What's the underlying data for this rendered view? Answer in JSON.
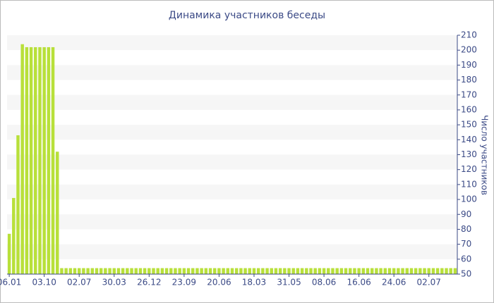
{
  "chart_data": {
    "type": "bar",
    "title": "Динамика участников беседы",
    "y_label": "Число участников",
    "color": "#b8e03a",
    "ylim": [
      50,
      210
    ],
    "yticks": [
      50,
      60,
      70,
      80,
      90,
      100,
      110,
      120,
      130,
      140,
      150,
      160,
      170,
      180,
      190,
      200,
      210
    ],
    "categories": [
      "06.01",
      null,
      null,
      null,
      null,
      null,
      null,
      null,
      "03.10",
      null,
      null,
      null,
      null,
      null,
      null,
      null,
      "02.07",
      null,
      null,
      null,
      null,
      null,
      null,
      null,
      "30.03",
      null,
      null,
      null,
      null,
      null,
      null,
      null,
      "26.12",
      null,
      null,
      null,
      null,
      null,
      null,
      null,
      "23.09",
      null,
      null,
      null,
      null,
      null,
      null,
      null,
      "20.06",
      null,
      null,
      null,
      null,
      null,
      null,
      null,
      "18.03",
      null,
      null,
      null,
      null,
      null,
      null,
      null,
      "31.05",
      null,
      null,
      null,
      null,
      null,
      null,
      null,
      "08.06",
      null,
      null,
      null,
      null,
      null,
      null,
      null,
      "16.06",
      null,
      null,
      null,
      null,
      null,
      null,
      null,
      "24.06",
      null,
      null,
      null,
      null,
      null,
      null,
      null,
      "02.07",
      null,
      null,
      null,
      null,
      null,
      null
    ],
    "values": [
      77,
      101,
      143,
      204,
      202,
      202,
      202,
      202,
      202,
      202,
      202,
      132,
      54,
      54,
      54,
      54,
      54,
      54,
      54,
      54,
      54,
      54,
      54,
      54,
      54,
      54,
      54,
      54,
      54,
      54,
      54,
      54,
      54,
      54,
      54,
      54,
      54,
      54,
      54,
      54,
      54,
      54,
      54,
      54,
      54,
      54,
      54,
      54,
      54,
      54,
      54,
      54,
      54,
      54,
      54,
      54,
      54,
      54,
      54,
      54,
      54,
      54,
      54,
      54,
      54,
      54,
      54,
      54,
      54,
      54,
      54,
      54,
      54,
      54,
      54,
      54,
      54,
      54,
      54,
      54,
      54,
      54,
      54,
      54,
      54,
      54,
      54,
      54,
      54,
      54,
      54,
      54,
      54,
      54,
      54,
      54,
      54,
      54,
      54,
      54,
      54,
      54,
      54
    ]
  }
}
